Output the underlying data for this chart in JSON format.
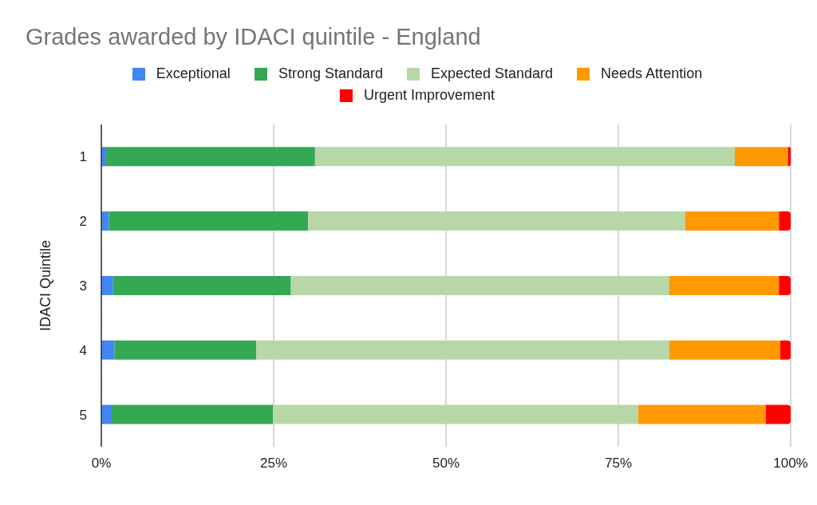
{
  "chart_data": {
    "type": "bar",
    "title": "Grades awarded by IDACI quintile - England",
    "ylabel": "IDACI Quintile",
    "orientation": "horizontal",
    "stacked": true,
    "categories": [
      "1",
      "2",
      "3",
      "4",
      "5"
    ],
    "series": [
      {
        "name": "Exceptional",
        "color": "#4285f4",
        "values": [
          0.7,
          1.1,
          1.7,
          1.9,
          1.5
        ]
      },
      {
        "name": "Strong Standard",
        "color": "#34a853",
        "values": [
          30.3,
          28.9,
          25.8,
          20.6,
          23.4
        ]
      },
      {
        "name": "Expected Standard",
        "color": "#b7d7a8",
        "values": [
          60.9,
          54.7,
          54.9,
          59.9,
          53.0
        ]
      },
      {
        "name": "Needs Attention",
        "color": "#ff9900",
        "values": [
          7.7,
          13.6,
          15.9,
          16.1,
          18.5
        ]
      },
      {
        "name": "Urgent Improvement",
        "color": "#ff0000",
        "values": [
          0.4,
          1.7,
          1.7,
          1.5,
          3.6
        ]
      }
    ],
    "xlim": [
      0,
      100
    ],
    "xticks": [
      {
        "value": 0,
        "label": "0%"
      },
      {
        "value": 25,
        "label": "25%"
      },
      {
        "value": 50,
        "label": "50%"
      },
      {
        "value": 75,
        "label": "75%"
      },
      {
        "value": 100,
        "label": "100%"
      }
    ],
    "grid": "x",
    "legend": "top"
  }
}
